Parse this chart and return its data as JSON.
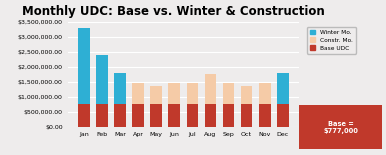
{
  "title": "Monthly UDC: Base vs. Winter & Construction",
  "months": [
    "Jan",
    "Feb",
    "Mar",
    "Apr",
    "May",
    "Jun",
    "Jul",
    "Aug",
    "Sep",
    "Oct",
    "Nov",
    "Dec"
  ],
  "base_udc": [
    777000,
    777000,
    777000,
    777000,
    777000,
    777000,
    777000,
    777000,
    777000,
    777000,
    777000,
    777000
  ],
  "constr_mo": [
    0,
    0,
    0,
    700000,
    600000,
    700000,
    700000,
    1000000,
    700000,
    600000,
    700000,
    0
  ],
  "winter_mo": [
    2523000,
    1623000,
    1023000,
    0,
    0,
    0,
    0,
    0,
    0,
    0,
    0,
    1023000
  ],
  "color_base": "#c0392b",
  "color_constr": "#f5cba7",
  "color_winter": "#2eafd4",
  "ylim": [
    0,
    3500000
  ],
  "yticks": [
    0,
    500000,
    1000000,
    1500000,
    2000000,
    2500000,
    3000000,
    3500000
  ],
  "ytick_labels": [
    "$0.00",
    "$500,000.00",
    "$1,000,000.00",
    "$1,500,000.00",
    "$2,000,000.00",
    "$2,500,000.00",
    "$3,000,000.00",
    "$3,500,000.00"
  ],
  "legend_labels": [
    "Winter Mo.",
    "Constr. Mo.",
    "Base UDC"
  ],
  "annotation_text": "Base =\n$777,000",
  "annotation_bg": "#c0392b",
  "annotation_fg": "#ffffff",
  "bg_color": "#eeecec",
  "grid_color": "#ffffff",
  "title_fontsize": 8.5,
  "tick_fontsize": 4.5
}
